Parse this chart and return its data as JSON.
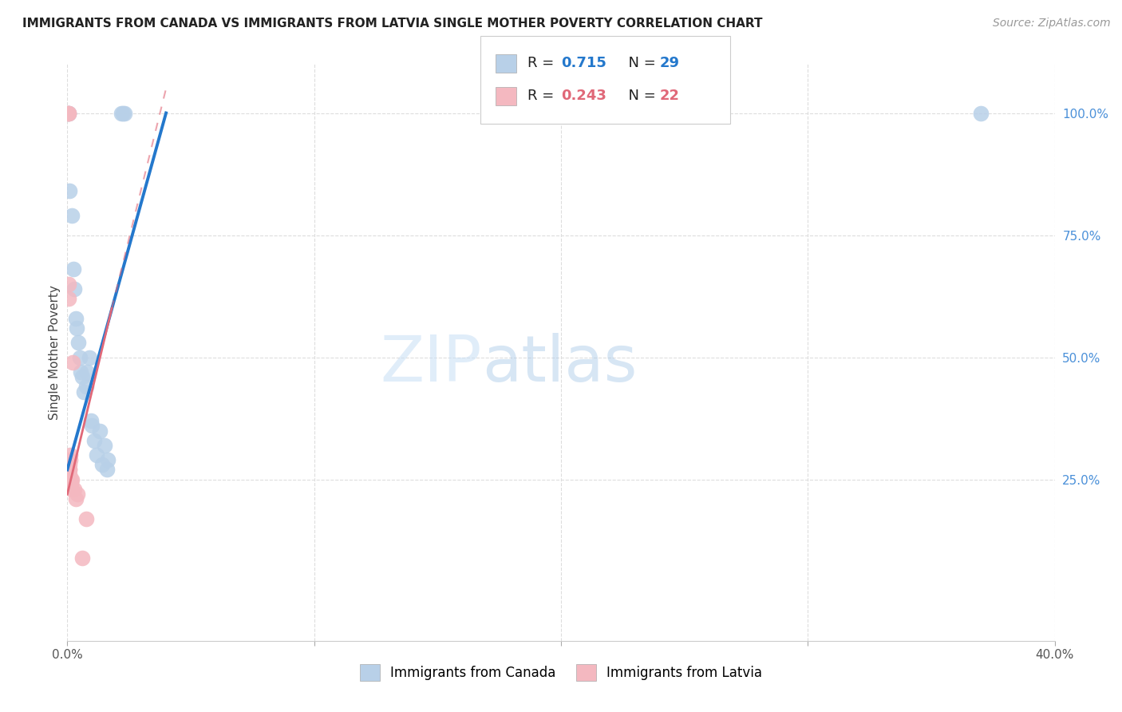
{
  "title": "IMMIGRANTS FROM CANADA VS IMMIGRANTS FROM LATVIA SINGLE MOTHER POVERTY CORRELATION CHART",
  "source": "Source: ZipAtlas.com",
  "ylabel": "Single Mother Poverty",
  "legend_label_blue": "Immigrants from Canada",
  "legend_label_pink": "Immigrants from Latvia",
  "watermark_zip": "ZIP",
  "watermark_atlas": "atlas",
  "blue_color": "#b8d0e8",
  "blue_line_color": "#2478cc",
  "pink_color": "#f4b8c0",
  "pink_line_color": "#e06878",
  "blue_scatter": [
    [
      0.0004,
      1.0
    ],
    [
      0.0006,
      1.0
    ],
    [
      0.001,
      0.84
    ],
    [
      0.0018,
      0.79
    ],
    [
      0.0025,
      0.68
    ],
    [
      0.0028,
      0.64
    ],
    [
      0.0033,
      0.58
    ],
    [
      0.0038,
      0.56
    ],
    [
      0.0045,
      0.53
    ],
    [
      0.005,
      0.5
    ],
    [
      0.0055,
      0.47
    ],
    [
      0.006,
      0.46
    ],
    [
      0.0068,
      0.43
    ],
    [
      0.0075,
      0.44
    ],
    [
      0.008,
      0.47
    ],
    [
      0.009,
      0.5
    ],
    [
      0.0095,
      0.37
    ],
    [
      0.01,
      0.36
    ],
    [
      0.011,
      0.33
    ],
    [
      0.012,
      0.3
    ],
    [
      0.013,
      0.35
    ],
    [
      0.014,
      0.28
    ],
    [
      0.015,
      0.32
    ],
    [
      0.016,
      0.27
    ],
    [
      0.0165,
      0.29
    ],
    [
      0.022,
      1.0
    ],
    [
      0.0225,
      1.0
    ],
    [
      0.023,
      1.0
    ],
    [
      0.37,
      1.0
    ]
  ],
  "pink_scatter": [
    [
      0.0003,
      1.0
    ],
    [
      0.0004,
      1.0
    ],
    [
      0.0005,
      1.0
    ],
    [
      0.0005,
      0.65
    ],
    [
      0.0006,
      0.62
    ],
    [
      0.0007,
      0.28
    ],
    [
      0.0008,
      0.27
    ],
    [
      0.0008,
      0.26
    ],
    [
      0.0009,
      0.27
    ],
    [
      0.001,
      0.26
    ],
    [
      0.0011,
      0.3
    ],
    [
      0.0012,
      0.29
    ],
    [
      0.0015,
      0.25
    ],
    [
      0.0016,
      0.24
    ],
    [
      0.0018,
      0.23
    ],
    [
      0.0019,
      0.25
    ],
    [
      0.0022,
      0.49
    ],
    [
      0.0028,
      0.23
    ],
    [
      0.0035,
      0.21
    ],
    [
      0.004,
      0.22
    ],
    [
      0.006,
      0.09
    ],
    [
      0.0075,
      0.17
    ]
  ],
  "blue_trendline": [
    [
      0.0,
      0.27
    ],
    [
      0.04,
      1.0
    ]
  ],
  "pink_trendline_solid": [
    [
      0.0,
      0.22
    ],
    [
      0.018,
      0.6
    ]
  ],
  "pink_trendline_dashed": [
    [
      0.018,
      0.6
    ],
    [
      0.04,
      1.05
    ]
  ],
  "xlim": [
    0.0,
    0.4
  ],
  "ylim": [
    -0.08,
    1.1
  ],
  "xticks": [
    0.0,
    0.1,
    0.2,
    0.3,
    0.4
  ],
  "xticklabels": [
    "0.0%",
    "",
    "",
    "",
    "40.0%"
  ],
  "yticks": [
    0.25,
    0.5,
    0.75,
    1.0
  ],
  "yticklabels": [
    "25.0%",
    "50.0%",
    "75.0%",
    "100.0%"
  ],
  "grid_color": "#dddddd",
  "title_fontsize": 11,
  "source_fontsize": 10,
  "tick_fontsize": 11,
  "ylabel_fontsize": 11
}
